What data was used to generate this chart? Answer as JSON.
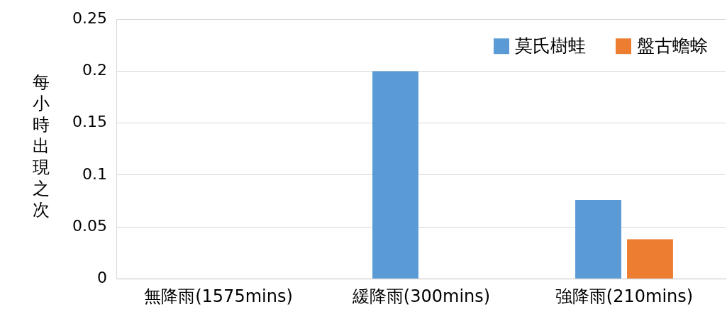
{
  "chart_data": {
    "type": "bar",
    "ylabel": "每小時出現之次",
    "categories": [
      "無降雨(1575mins)",
      "緩降雨(300mins)",
      "強降雨(210mins)"
    ],
    "series": [
      {
        "name": "莫氏樹蛙",
        "color": "#5b9bd5",
        "values": [
          0,
          0.2,
          0.076
        ]
      },
      {
        "name": "盤古蟾蜍",
        "color": "#ed7d31",
        "values": [
          0,
          0,
          0.038
        ]
      }
    ],
    "ylim": [
      0,
      0.25
    ],
    "yticks": [
      0,
      0.05,
      0.1,
      0.15,
      0.2,
      0.25
    ],
    "grid": "y",
    "legend": "top right"
  }
}
